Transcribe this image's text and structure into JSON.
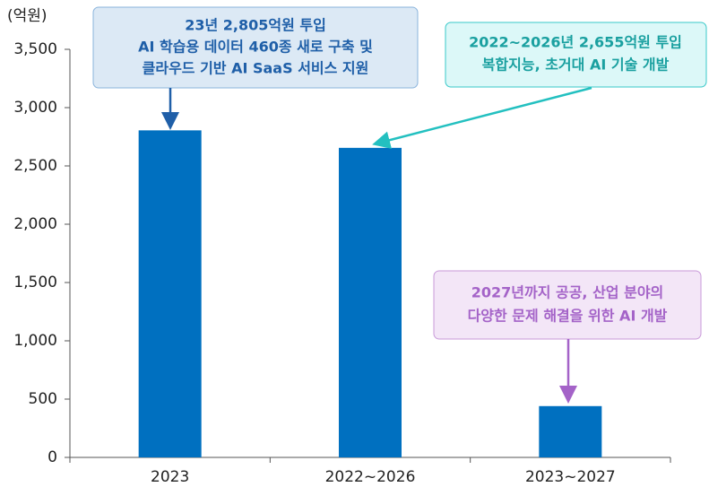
{
  "chart_data": {
    "type": "bar",
    "y_label": "(억원)",
    "categories": [
      "2023",
      "2022~2026",
      "2023~2027"
    ],
    "values": [
      2805,
      2655,
      440
    ],
    "color": "#0070c0",
    "ylim": [
      0,
      3500
    ],
    "yticks": [
      0,
      500,
      {
        "value": 1000,
        "label": "1,000"
      },
      {
        "value": 1500,
        "label": "1,500"
      },
      {
        "value": 2000,
        "label": "2,000"
      },
      {
        "value": 2500,
        "label": "2,500"
      },
      {
        "value": 3000,
        "label": "3,000"
      },
      {
        "value": 3500,
        "label": "3,500"
      }
    ],
    "grid": false,
    "annotations": [
      {
        "lines": [
          "23년 2,805억원 투입",
          "AI 학습용 데이터 460종 새로 구축 및",
          "클라우드 기반 AI SaaS 서비스 지원"
        ]
      },
      {
        "lines": [
          "2022~2026년 2,655억원 투입",
          "복합지능, 초거대 AI 기술 개발"
        ]
      },
      {
        "lines": [
          "2027년까지 공공, 산업 분야의",
          "다양한  문제 해결을 위한 AI 개발"
        ]
      }
    ]
  }
}
